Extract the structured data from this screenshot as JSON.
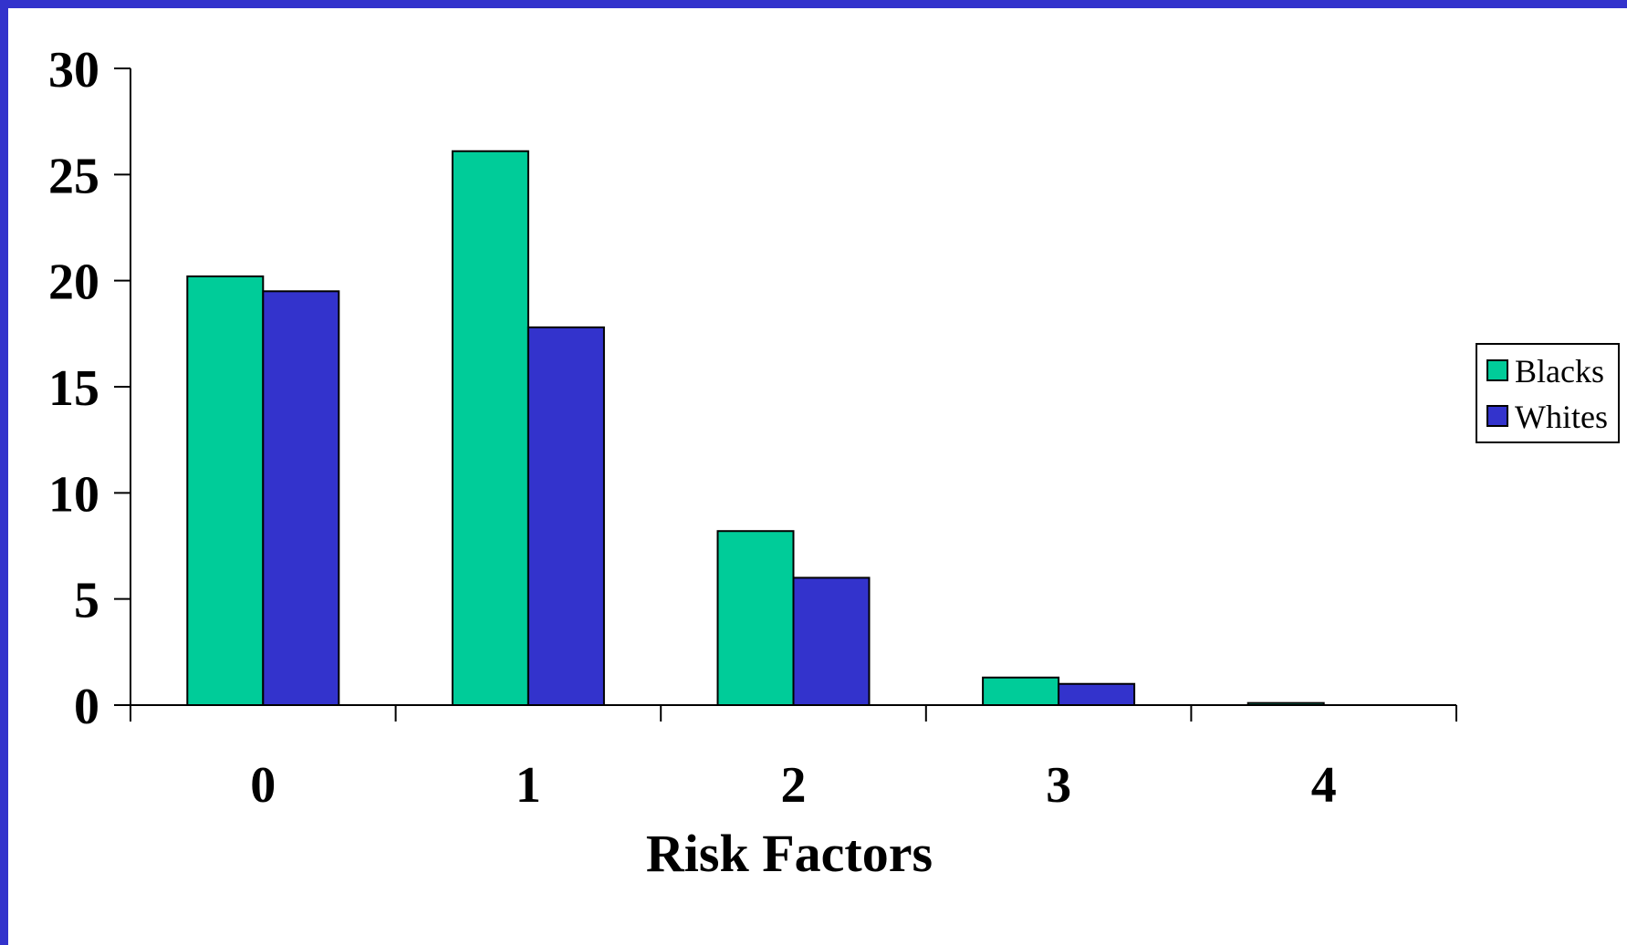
{
  "chart_data": {
    "type": "bar",
    "categories": [
      "0",
      "1",
      "2",
      "3",
      "4"
    ],
    "series": [
      {
        "name": "Blacks",
        "values": [
          20.2,
          26.1,
          8.2,
          1.3,
          0.1
        ],
        "color": "#00cc99"
      },
      {
        "name": "Whites",
        "values": [
          19.5,
          17.8,
          6.0,
          1.0,
          0.0
        ],
        "color": "#3333cc"
      }
    ],
    "title": "",
    "xlabel": "Risk Factors",
    "ylabel": "",
    "ylim": [
      0,
      30
    ],
    "yticks": [
      "0",
      "5",
      "10",
      "15",
      "20",
      "25",
      "30"
    ],
    "grid": false,
    "legend": "right"
  }
}
